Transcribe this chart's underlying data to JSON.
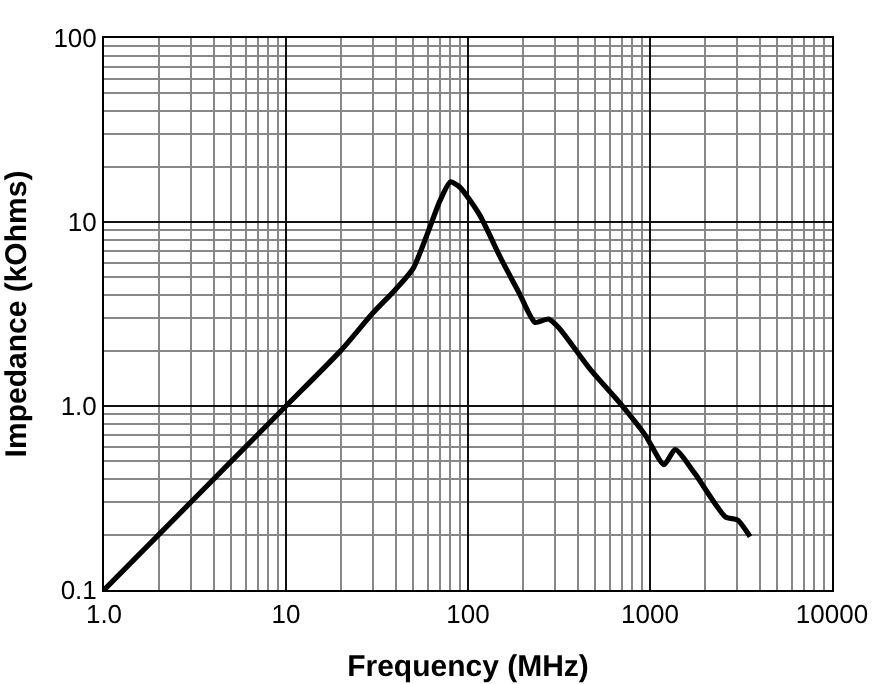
{
  "chart_data": {
    "type": "line",
    "xlabel": "Frequency (MHz)",
    "ylabel": "Impedance (kOhms)",
    "log": "xy",
    "grid": true,
    "marker": "none",
    "line_style": "solid",
    "xlim": [
      1,
      10000
    ],
    "ylim": [
      0.1,
      100
    ],
    "xticks": [
      {
        "value": 1,
        "label": "1.0"
      },
      10,
      100,
      1000,
      10000
    ],
    "yticks": [
      0.1,
      {
        "value": 1,
        "label": "1.0"
      },
      10,
      100
    ],
    "series": [
      {
        "color": "#000000",
        "x": [
          1,
          2,
          5,
          10,
          20,
          30,
          40,
          50,
          60,
          70,
          80,
          90,
          116,
          152,
          192,
          233,
          277,
          318,
          470,
          693,
          946,
          1194,
          1374,
          1762,
          2594,
          3034,
          3548
        ],
        "values": [
          0.1,
          0.2,
          0.5,
          1.0,
          2.0,
          3.2,
          4.3,
          5.6,
          8.7,
          13,
          16.5,
          15.5,
          10.9,
          6.3,
          4.07,
          2.85,
          2.97,
          2.64,
          1.58,
          1.02,
          0.69,
          0.48,
          0.58,
          0.43,
          0.25,
          0.24,
          0.195
        ]
      }
    ]
  }
}
